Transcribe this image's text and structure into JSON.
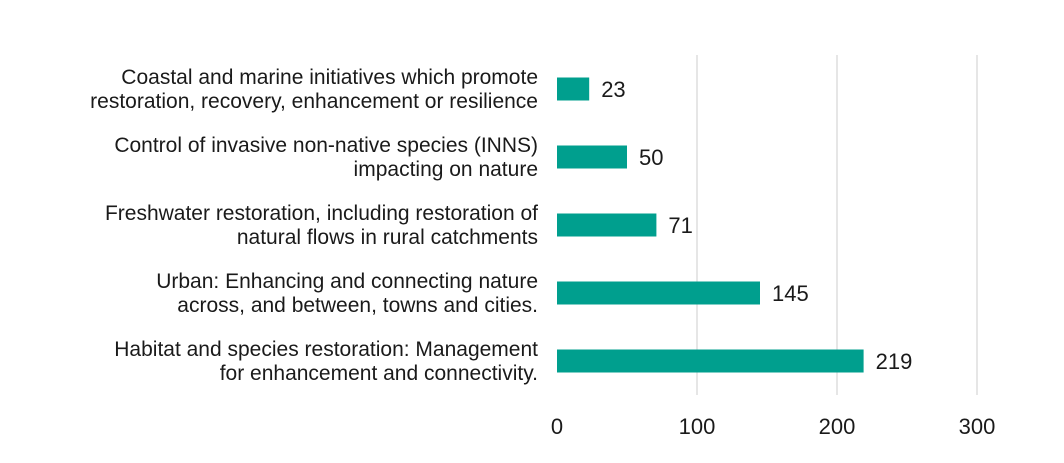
{
  "chart_data": {
    "type": "bar",
    "orientation": "horizontal",
    "categories": [
      [
        "Coastal and marine initiatives which promote",
        "restoration, recovery, enhancement or resilience"
      ],
      [
        "Control of invasive non-native species (INNS)",
        "impacting on nature"
      ],
      [
        "Freshwater restoration, including restoration of",
        "natural flows in rural catchments"
      ],
      [
        "Urban: Enhancing and connecting nature",
        "across, and between, towns and cities."
      ],
      [
        "Habitat and species restoration: Management",
        "for enhancement and connectivity."
      ]
    ],
    "values": [
      23,
      50,
      71,
      145,
      219
    ],
    "data_labels": [
      "23",
      "50",
      "71",
      "145",
      "219"
    ],
    "xlim": [
      0,
      300
    ],
    "x_ticks": [
      0,
      100,
      200,
      300
    ],
    "x_tick_labels": [
      "0",
      "100",
      "200",
      "300"
    ],
    "grid": "vertical",
    "legend": "none",
    "title": "",
    "xlabel": "",
    "ylabel": "",
    "bar_color": "#009f8e",
    "gridline_color": "#d9d9d9",
    "text_color": "#1a1a1a"
  }
}
